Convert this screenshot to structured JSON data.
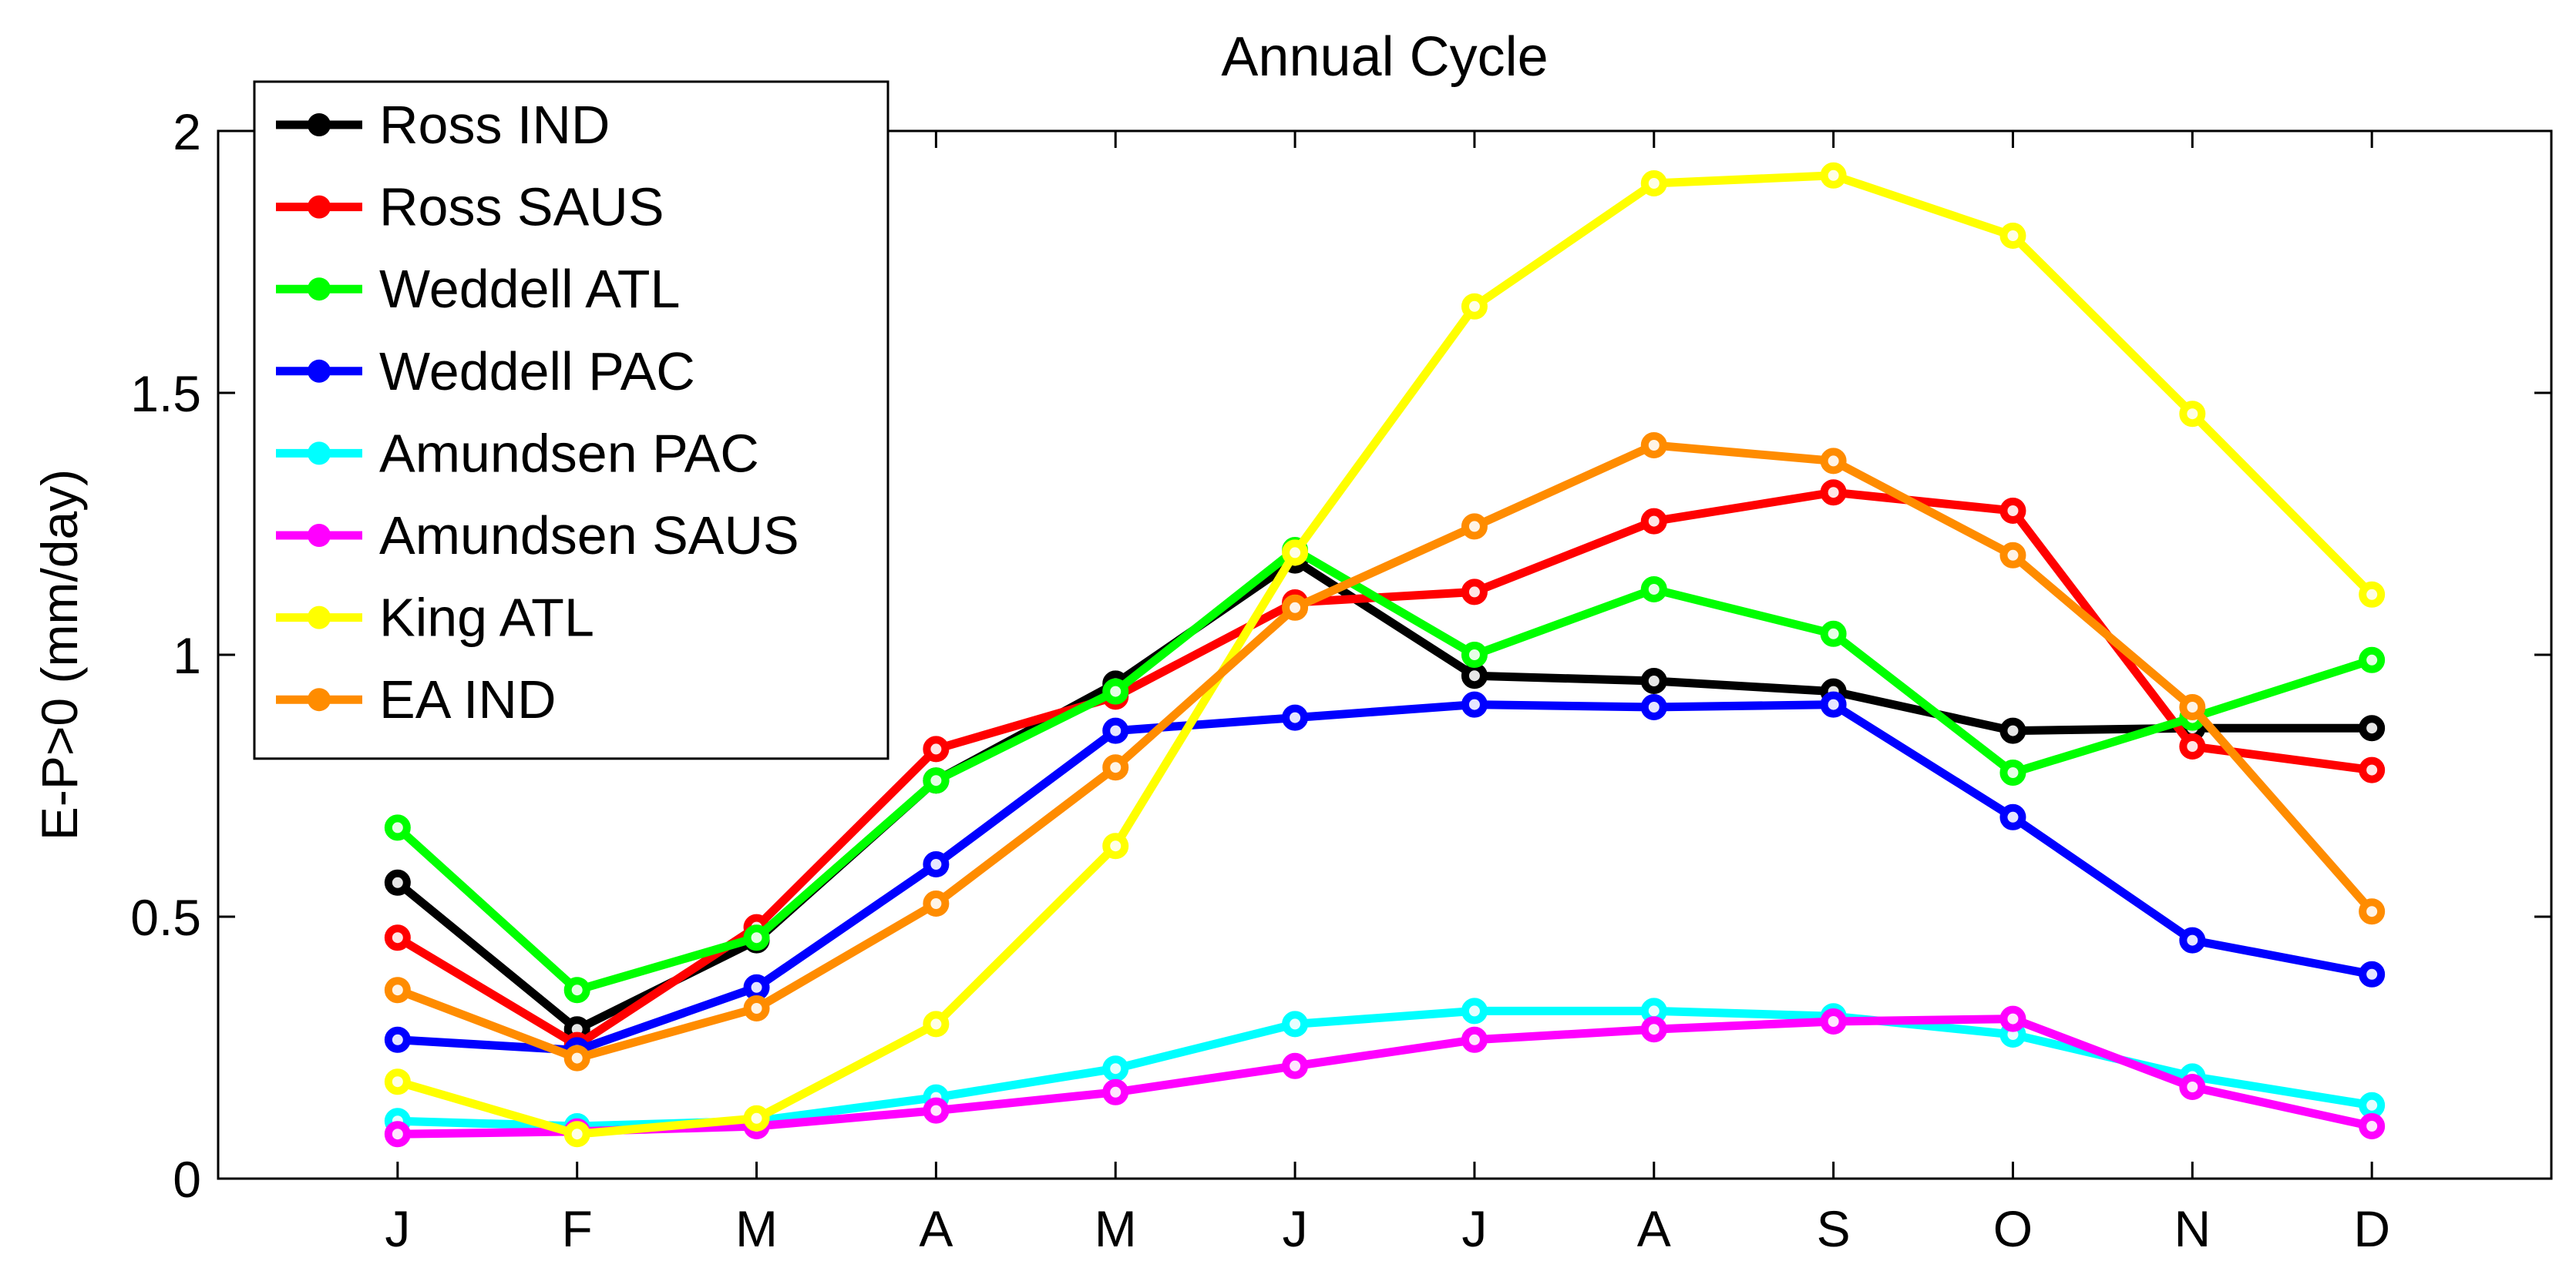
{
  "chart_data": {
    "type": "line",
    "title": "Annual Cycle",
    "xlabel": "",
    "ylabel": "E-P>0 (mm/day)",
    "categories": [
      "J",
      "F",
      "M",
      "A",
      "M",
      "J",
      "J",
      "A",
      "S",
      "O",
      "N",
      "D"
    ],
    "xlim": [
      0,
      13
    ],
    "ylim": [
      0,
      2.0
    ],
    "yticks": [
      0,
      0.5,
      1,
      1.5,
      2
    ],
    "ytick_labels": [
      "0",
      "0.5",
      "1",
      "1.5",
      "2"
    ],
    "grid": false,
    "legend_position": "top-left",
    "series": [
      {
        "name": "Ross IND",
        "color": "#000000",
        "values": [
          0.565,
          0.285,
          0.455,
          0.76,
          0.945,
          1.18,
          0.96,
          0.95,
          0.93,
          0.855,
          0.86,
          0.86
        ]
      },
      {
        "name": "Ross SAUS",
        "color": "#ff0000",
        "values": [
          0.46,
          0.255,
          0.48,
          0.82,
          0.92,
          1.1,
          1.12,
          1.255,
          1.31,
          1.275,
          0.825,
          0.78
        ]
      },
      {
        "name": "Weddell ATL",
        "color": "#00ff00",
        "values": [
          0.67,
          0.36,
          0.46,
          0.76,
          0.93,
          1.2,
          1.0,
          1.125,
          1.04,
          0.775,
          0.88,
          0.99
        ]
      },
      {
        "name": "Weddell PAC",
        "color": "#0000ff",
        "values": [
          0.265,
          0.245,
          0.365,
          0.6,
          0.855,
          0.88,
          0.905,
          0.9,
          0.905,
          0.69,
          0.455,
          0.39
        ]
      },
      {
        "name": "Amundsen PAC",
        "color": "#00ffff",
        "values": [
          0.11,
          0.1,
          0.11,
          0.155,
          0.21,
          0.295,
          0.32,
          0.32,
          0.31,
          0.275,
          0.195,
          0.14
        ]
      },
      {
        "name": "Amundsen SAUS",
        "color": "#ff00ff",
        "values": [
          0.085,
          0.09,
          0.1,
          0.13,
          0.165,
          0.215,
          0.265,
          0.285,
          0.3,
          0.305,
          0.175,
          0.1
        ]
      },
      {
        "name": "King ATL",
        "color": "#ffff00",
        "values": [
          0.185,
          0.085,
          0.115,
          0.295,
          0.635,
          1.195,
          1.665,
          1.9,
          1.915,
          1.8,
          1.46,
          1.115
        ]
      },
      {
        "name": "EA IND",
        "color": "#ff8c00",
        "values": [
          0.36,
          0.23,
          0.325,
          0.525,
          0.785,
          1.09,
          1.245,
          1.4,
          1.37,
          1.19,
          0.9,
          0.51
        ]
      }
    ]
  }
}
